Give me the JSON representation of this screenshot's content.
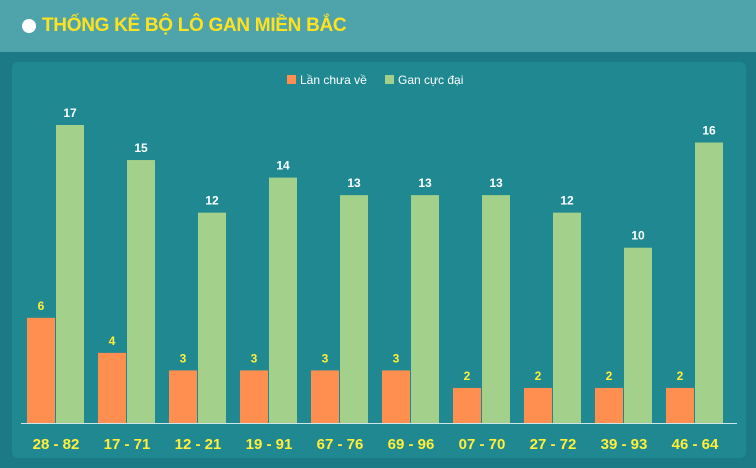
{
  "header": {
    "title": "THỐNG KÊ BỘ LÔ GAN MIỀN BẮC"
  },
  "colors": {
    "series1": "#ff8f50",
    "series2": "#a3d08a",
    "label1": "#ffef3a",
    "label2": "#ffffff",
    "xlabel": "#ffef3a"
  },
  "chart_data": {
    "type": "bar",
    "categories": [
      "28 - 82",
      "17 - 71",
      "12 - 21",
      "19 - 91",
      "67 - 76",
      "69 - 96",
      "07 - 70",
      "27 - 72",
      "39 - 93",
      "46 - 64"
    ],
    "series": [
      {
        "name": "Lần chưa về",
        "values": [
          6,
          4,
          3,
          3,
          3,
          3,
          2,
          2,
          2,
          2
        ]
      },
      {
        "name": "Gan cực đại",
        "values": [
          17,
          15,
          12,
          14,
          13,
          13,
          13,
          12,
          10,
          16
        ]
      }
    ],
    "ylim": [
      0,
      17
    ],
    "legend": "top-center",
    "grid": false
  }
}
